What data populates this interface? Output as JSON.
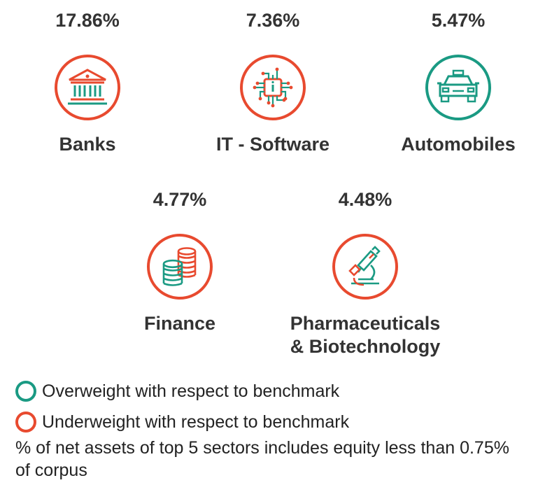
{
  "sectors": [
    {
      "name": "Banks",
      "percent": "17.86%",
      "status": "underweight",
      "icon": "bank-icon"
    },
    {
      "name": "IT - Software",
      "percent": "7.36%",
      "status": "underweight",
      "icon": "chip-icon"
    },
    {
      "name": "Automobiles",
      "percent": "5.47%",
      "status": "overweight",
      "icon": "car-icon"
    },
    {
      "name": "Finance",
      "percent": "4.77%",
      "status": "underweight",
      "icon": "coins-icon"
    },
    {
      "name": "Pharmaceuticals",
      "name_line2": "& Biotechnology",
      "percent": "4.48%",
      "status": "underweight",
      "icon": "microscope-icon"
    }
  ],
  "legend": {
    "overweight": "Overweight with respect to benchmark",
    "underweight": "Underweight with respect to benchmark",
    "note": "% of net assets of top 5 sectors includes equity less than 0.75% of corpus"
  },
  "colors": {
    "overweight": "#1a9a83",
    "underweight": "#e84a2f",
    "text": "#333333"
  }
}
